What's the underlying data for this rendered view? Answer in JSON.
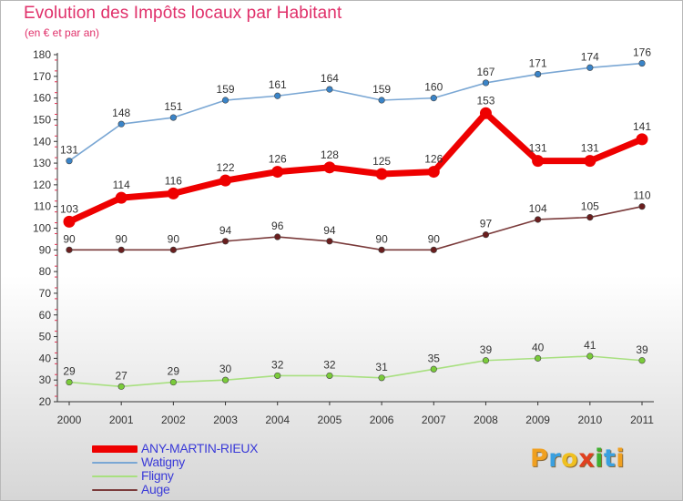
{
  "header": {
    "title": "Evolution des Impôts locaux par Habitant",
    "subtitle": "(en € et par an)"
  },
  "logo": {
    "text": "Proxiti",
    "letters": [
      {
        "ch": "P",
        "color": "#f0a020"
      },
      {
        "ch": "r",
        "color": "#3aa0e0"
      },
      {
        "ch": "o",
        "color": "#f0c020"
      },
      {
        "ch": "x",
        "color": "#e04020"
      },
      {
        "ch": "i",
        "color": "#40b030"
      },
      {
        "ch": "t",
        "color": "#3aa0e0"
      },
      {
        "ch": "i",
        "color": "#f0a020"
      }
    ]
  },
  "chart_data": {
    "type": "line",
    "title": "Evolution des Impôts locaux par Habitant",
    "subtitle": "(en € et par an)",
    "xlabel": "",
    "ylabel": "",
    "x": [
      "2000",
      "2001",
      "2002",
      "2003",
      "2004",
      "2005",
      "2006",
      "2007",
      "2008",
      "2009",
      "2010",
      "2011"
    ],
    "ylim": [
      20,
      180
    ],
    "yticks": [
      20,
      30,
      40,
      50,
      60,
      70,
      80,
      90,
      100,
      110,
      120,
      130,
      140,
      150,
      160,
      170,
      180
    ],
    "grid": false,
    "legend_position": "bottom-left",
    "series": [
      {
        "name": "ANY-MARTIN-RIEUX",
        "color": "#ee0000",
        "marker_color": "#ee0000",
        "emphasis": true,
        "values": [
          103,
          114,
          116,
          122,
          126,
          128,
          125,
          126,
          153,
          131,
          131,
          141
        ]
      },
      {
        "name": "Watigny",
        "color": "#7aa7d4",
        "marker_color": "#3a84c8",
        "emphasis": false,
        "values": [
          131,
          148,
          151,
          159,
          161,
          164,
          159,
          160,
          167,
          171,
          174,
          176
        ]
      },
      {
        "name": "Fligny",
        "color": "#a8e080",
        "marker_color": "#7acb3a",
        "emphasis": false,
        "values": [
          29,
          27,
          29,
          30,
          32,
          32,
          31,
          35,
          39,
          40,
          41,
          39
        ]
      },
      {
        "name": "Auge",
        "color": "#7a3a3a",
        "marker_color": "#6a1e1e",
        "emphasis": false,
        "values": [
          90,
          90,
          90,
          94,
          96,
          94,
          90,
          90,
          97,
          104,
          105,
          110
        ]
      }
    ]
  }
}
